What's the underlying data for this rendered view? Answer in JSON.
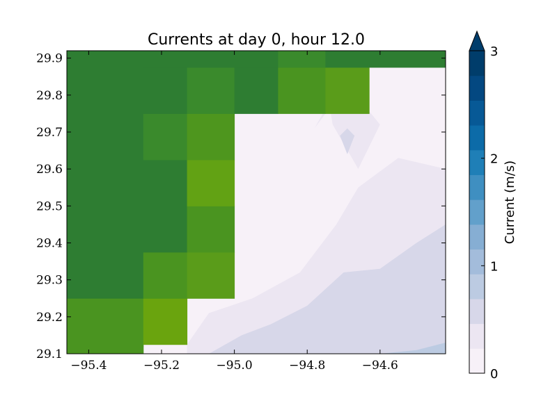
{
  "chart_data": {
    "type": "heatmap",
    "title": "Currents at day 0, hour 12.0",
    "xlim": [
      -95.46,
      -94.42
    ],
    "ylim": [
      29.1,
      29.92
    ],
    "x_ticks": [
      -95.4,
      -95.2,
      -95.0,
      -94.8,
      -94.6
    ],
    "x_tick_labels": [
      "−95.4",
      "−95.2",
      "−95.0",
      "−94.8",
      "−94.6"
    ],
    "y_ticks": [
      29.1,
      29.2,
      29.3,
      29.4,
      29.5,
      29.6,
      29.7,
      29.8,
      29.9
    ],
    "y_tick_labels": [
      "29.1",
      "29.2",
      "29.3",
      "29.4",
      "29.5",
      "29.6",
      "29.7",
      "29.8",
      "29.9"
    ],
    "land_cells": [
      {
        "x": [
          -95.46,
          -95.25
        ],
        "y": [
          29.1,
          29.12
        ],
        "color": "#4a9420"
      },
      {
        "x": [
          -95.46,
          -95.25
        ],
        "y": [
          29.12,
          29.25
        ],
        "color": "#4a9420"
      },
      {
        "x": [
          -95.25,
          -95.13
        ],
        "y": [
          29.125,
          29.25
        ],
        "color": "#6aa40e"
      },
      {
        "x": [
          -95.46,
          -95.25
        ],
        "y": [
          29.25,
          29.92
        ],
        "color": "#2e7d32"
      },
      {
        "x": [
          -95.25,
          -95.13
        ],
        "y": [
          29.25,
          29.375
        ],
        "color": "#4a9420"
      },
      {
        "x": [
          -95.13,
          -95.0
        ],
        "y": [
          29.25,
          29.375
        ],
        "color": "#5a9c1a"
      },
      {
        "x": [
          -95.25,
          -95.13
        ],
        "y": [
          29.375,
          29.625
        ],
        "color": "#2e7d32"
      },
      {
        "x": [
          -95.13,
          -95.0
        ],
        "y": [
          29.375,
          29.5
        ],
        "color": "#4a9420"
      },
      {
        "x": [
          -95.13,
          -95.0
        ],
        "y": [
          29.5,
          29.625
        ],
        "color": "#62a214"
      },
      {
        "x": [
          -95.25,
          -95.13
        ],
        "y": [
          29.625,
          29.75
        ],
        "color": "#3a8a2c"
      },
      {
        "x": [
          -95.13,
          -95.0
        ],
        "y": [
          29.625,
          29.75
        ],
        "color": "#4e961e"
      },
      {
        "x": [
          -95.25,
          -95.13
        ],
        "y": [
          29.75,
          29.875
        ],
        "color": "#2e7d32"
      },
      {
        "x": [
          -95.13,
          -95.0
        ],
        "y": [
          29.75,
          29.875
        ],
        "color": "#3a8a2c"
      },
      {
        "x": [
          -95.0,
          -94.88
        ],
        "y": [
          29.75,
          29.875
        ],
        "color": "#2e7d32"
      },
      {
        "x": [
          -94.88,
          -94.75
        ],
        "y": [
          29.75,
          29.875
        ],
        "color": "#4a9420"
      },
      {
        "x": [
          -94.75,
          -94.63
        ],
        "y": [
          29.75,
          29.875
        ],
        "color": "#5a9c1a"
      },
      {
        "x": [
          -95.25,
          -94.88
        ],
        "y": [
          29.875,
          29.92
        ],
        "color": "#2e7d32"
      },
      {
        "x": [
          -94.88,
          -94.75
        ],
        "y": [
          29.875,
          29.92
        ],
        "color": "#3a8a2c"
      },
      {
        "x": [
          -94.75,
          -94.42
        ],
        "y": [
          29.875,
          29.92
        ],
        "color": "#2e7d32"
      }
    ],
    "water_background": "#f7f1f8",
    "contour_regions": [
      {
        "level": "0.5-0.75",
        "color": "#ece6f2",
        "x": [
          -95.13,
          -95.13,
          -95.07,
          -94.95,
          -94.82,
          -94.72,
          -94.66,
          -94.55,
          -94.42,
          -94.42
        ],
        "y": [
          29.1,
          29.125,
          29.21,
          29.25,
          29.32,
          29.45,
          29.55,
          29.63,
          29.6,
          29.1
        ]
      },
      {
        "level": "0.75-1.0",
        "color": "#d7d7e9",
        "x": [
          -95.07,
          -94.98,
          -94.9,
          -94.8,
          -94.7,
          -94.6,
          -94.5,
          -94.42,
          -94.42
        ],
        "y": [
          29.1,
          29.15,
          29.18,
          29.23,
          29.32,
          29.33,
          29.4,
          29.45,
          29.1
        ]
      },
      {
        "level": "1.0-1.25",
        "color": "#bccbe2",
        "x": [
          -94.6,
          -94.5,
          -94.42,
          -94.42
        ],
        "y": [
          29.1,
          29.11,
          29.13,
          29.1
        ]
      },
      {
        "level": "0.5-0.75",
        "color": "#ece6f2",
        "x": [
          -94.78,
          -94.74,
          -94.73,
          -94.66,
          -94.6,
          -94.69
        ],
        "y": [
          29.71,
          29.78,
          29.72,
          29.6,
          29.72,
          29.83
        ]
      },
      {
        "level": "0.75-1.0",
        "color": "#d7d7e9",
        "x": [
          -94.71,
          -94.69,
          -94.67,
          -94.69
        ],
        "y": [
          29.69,
          29.64,
          29.69,
          29.71
        ]
      }
    ],
    "colorbar": {
      "label": "Current (m/s)",
      "range": [
        0,
        3
      ],
      "ticks": [
        0,
        1,
        2,
        3
      ],
      "tick_labels": [
        "0",
        "1",
        "2",
        "3"
      ],
      "extend": "max",
      "colors": [
        "#f7f1f8",
        "#ece6f2",
        "#d7d7e9",
        "#bccbe2",
        "#a3bcdb",
        "#86aed3",
        "#62a0cb",
        "#3f8fc1",
        "#1f7fb7",
        "#0c6ba8",
        "#075996",
        "#034881",
        "#003d6b"
      ]
    },
    "grid": false
  }
}
